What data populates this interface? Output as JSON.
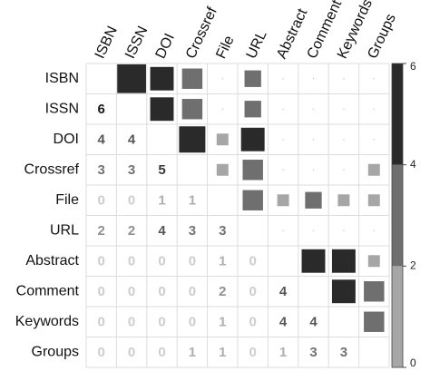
{
  "chart_data": {
    "type": "matrix",
    "labels": [
      "ISBN",
      "ISSN",
      "DOI",
      "Crossref",
      "File",
      "URL",
      "Abstract",
      "Comment",
      "Keywords",
      "Groups"
    ],
    "values": [
      [],
      [
        6
      ],
      [
        4,
        4
      ],
      [
        3,
        3,
        5
      ],
      [
        0,
        0,
        1,
        1
      ],
      [
        2,
        2,
        4,
        3,
        3
      ],
      [
        0,
        0,
        0,
        0,
        1,
        0
      ],
      [
        0,
        0,
        0,
        0,
        2,
        0,
        4
      ],
      [
        0,
        0,
        0,
        0,
        1,
        0,
        4,
        4
      ],
      [
        0,
        0,
        0,
        1,
        1,
        0,
        1,
        3,
        3
      ]
    ],
    "colors": [
      "#a6a6a6",
      "#6f6f6f",
      "#2a2a2a"
    ],
    "clim": [
      0,
      6
    ],
    "cticks": [
      0,
      2,
      4,
      6
    ]
  }
}
